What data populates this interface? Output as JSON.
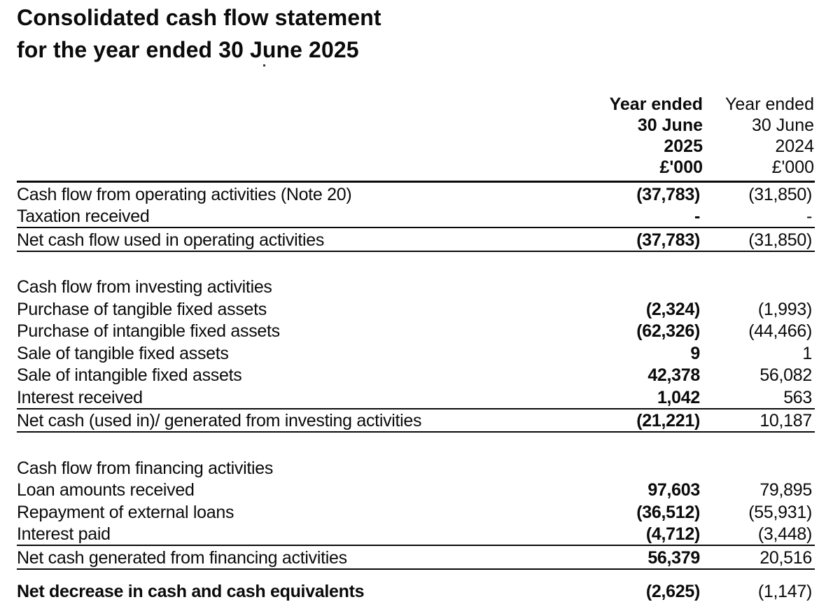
{
  "document": {
    "title_line1": "Consolidated cash flow statement",
    "title_line2": "for the year ended 30 June 2025"
  },
  "columns": {
    "current": {
      "line1": "Year ended",
      "line2": "30 June",
      "line3": "2025",
      "line4": "£'000"
    },
    "prior": {
      "line1": "Year ended",
      "line2": "30 June",
      "line3": "2024",
      "line4": "£'000"
    }
  },
  "operating": {
    "rows": [
      {
        "label": "Cash flow from operating activities (Note 20)",
        "current": "(37,783)",
        "prior": "(31,850)"
      },
      {
        "label": "Taxation received",
        "current": "-",
        "prior": "-"
      }
    ],
    "total": {
      "label": "Net cash flow used in operating activities",
      "current": "(37,783)",
      "prior": "(31,850)"
    }
  },
  "investing": {
    "heading": "Cash flow from investing activities",
    "rows": [
      {
        "label": "Purchase of tangible fixed assets",
        "current": "(2,324)",
        "prior": "(1,993)"
      },
      {
        "label": "Purchase of intangible fixed assets",
        "current": "(62,326)",
        "prior": "(44,466)"
      },
      {
        "label": "Sale of tangible fixed assets",
        "current": "9",
        "prior": "1"
      },
      {
        "label": "Sale of intangible fixed assets",
        "current": "42,378",
        "prior": "56,082"
      },
      {
        "label": "Interest received",
        "current": "1,042",
        "prior": "563"
      }
    ],
    "total": {
      "label": "Net cash (used in)/ generated from investing activities",
      "current": "(21,221)",
      "prior": "10,187"
    }
  },
  "financing": {
    "heading": "Cash flow from financing activities",
    "rows": [
      {
        "label": "Loan amounts received",
        "current": "97,603",
        "prior": "79,895"
      },
      {
        "label": "Repayment of external loans",
        "current": "(36,512)",
        "prior": "(55,931)"
      },
      {
        "label": "Interest paid",
        "current": "(4,712)",
        "prior": "(3,448)"
      }
    ],
    "total": {
      "label": "Net cash generated from financing activities",
      "current": "56,379",
      "prior": "20,516"
    }
  },
  "net_change": {
    "label": "Net decrease in cash and cash equivalents",
    "current": "(2,625)",
    "prior": "(1,147)"
  }
}
